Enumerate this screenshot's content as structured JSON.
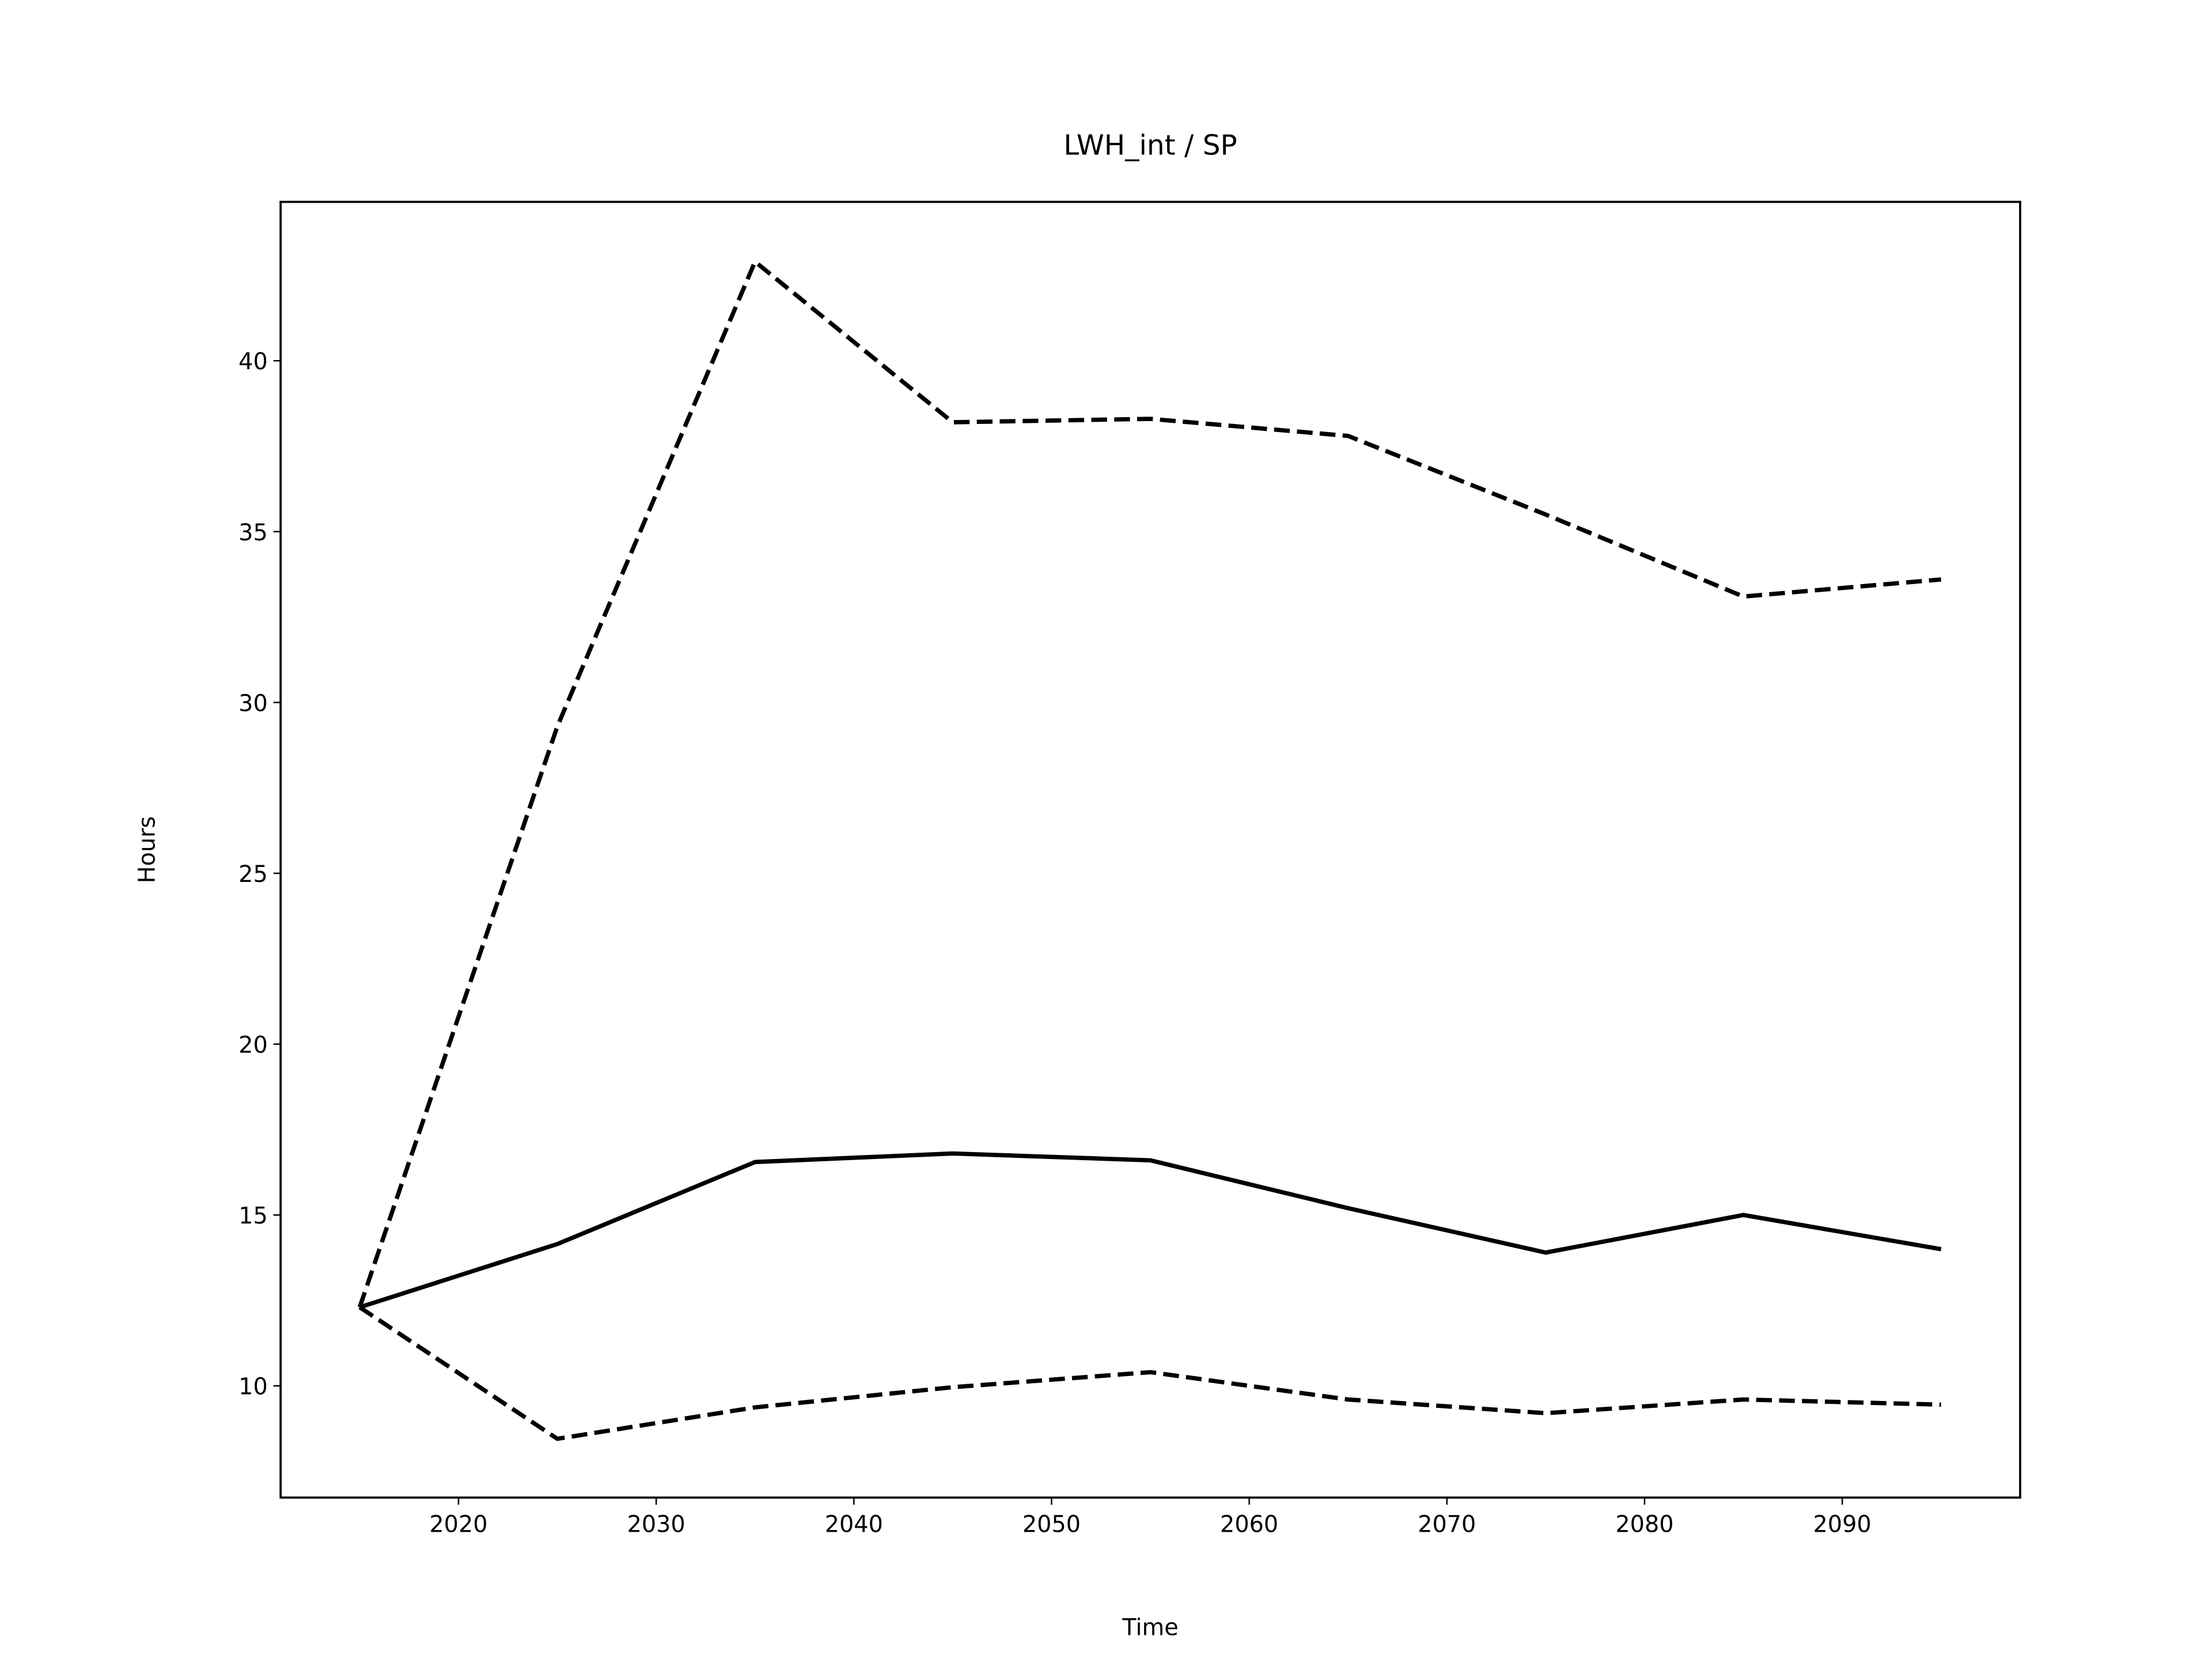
{
  "chart_data": {
    "type": "line",
    "title": "LWH_int / SP",
    "xlabel": "Time",
    "ylabel": "Hours",
    "x": [
      2015,
      2025,
      2035,
      2045,
      2055,
      2065,
      2075,
      2085,
      2095
    ],
    "series": [
      {
        "color": "#000000",
        "linestyle": "solid",
        "values": [
          12.3,
          14.15,
          16.55,
          16.8,
          16.6,
          15.2,
          13.9,
          15.0,
          14.0
        ]
      },
      {
        "color": "#000000",
        "linestyle": "dashed",
        "values": [
          12.3,
          29.3,
          42.9,
          38.2,
          38.3,
          37.8,
          35.5,
          33.1,
          33.6
        ]
      },
      {
        "color": "#000000",
        "linestyle": "dashed",
        "values": [
          12.3,
          8.45,
          9.37,
          9.96,
          10.4,
          9.6,
          9.2,
          9.6,
          9.45
        ]
      }
    ],
    "xlim": [
      2011,
      2099
    ],
    "xticks": [
      2020,
      2030,
      2040,
      2050,
      2060,
      2070,
      2080,
      2090
    ],
    "ylim": [
      6.73,
      44.65
    ],
    "yticks": [
      10,
      15,
      20,
      25,
      30,
      35,
      40
    ],
    "grid": false
  }
}
